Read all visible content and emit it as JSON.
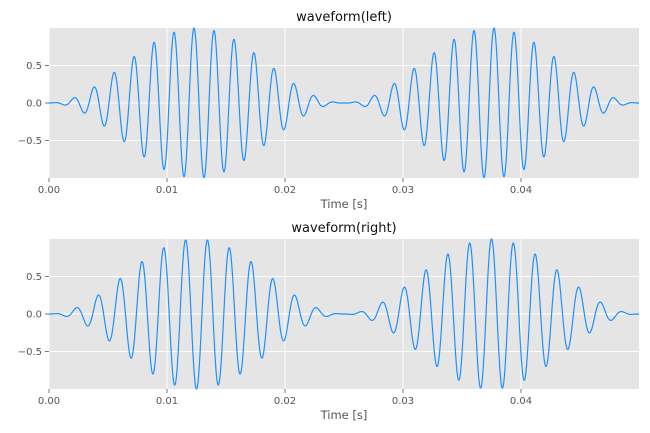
{
  "colors": {
    "background": "#ffffff",
    "plot_bg": "#e5e5e5",
    "grid": "#ffffff",
    "series": "#1e90ff",
    "text": "#555555"
  },
  "chart_data": [
    {
      "type": "line",
      "title": "waveform(left)",
      "xlabel": "Time [s]",
      "ylabel": "",
      "grid": true,
      "xlim": [
        0,
        0.05
      ],
      "ylim": [
        -1,
        1
      ],
      "xticks": [
        0.0,
        0.01,
        0.02,
        0.03,
        0.04
      ],
      "xtick_labels": [
        "0.00",
        "0.01",
        "0.02",
        "0.03",
        "0.04"
      ],
      "yticks": [
        -0.5,
        0.0,
        0.5
      ],
      "ytick_labels": [
        "−0.5",
        "0.0",
        "0.5"
      ],
      "series": [
        {
          "signal": {
            "carrier_hz": 590,
            "envelope_period_s": 0.025,
            "envelope_start_s": 0.0,
            "amplitude": 1.0,
            "sample_rate_hz": 60000
          }
        }
      ]
    },
    {
      "type": "line",
      "title": "waveform(right)",
      "xlabel": "Time [s]",
      "ylabel": "",
      "grid": true,
      "xlim": [
        0,
        0.05
      ],
      "ylim": [
        -1,
        1
      ],
      "xticks": [
        0.0,
        0.01,
        0.02,
        0.03,
        0.04
      ],
      "xtick_labels": [
        "0.00",
        "0.01",
        "0.02",
        "0.03",
        "0.04"
      ],
      "yticks": [
        -0.5,
        0.0,
        0.5
      ],
      "ytick_labels": [
        "−0.5",
        "0.0",
        "0.5"
      ],
      "series": [
        {
          "signal": {
            "carrier_hz": 540,
            "envelope_period_s": 0.025,
            "envelope_start_s": 0.0,
            "amplitude": 1.0,
            "sample_rate_hz": 60000
          }
        }
      ]
    }
  ]
}
